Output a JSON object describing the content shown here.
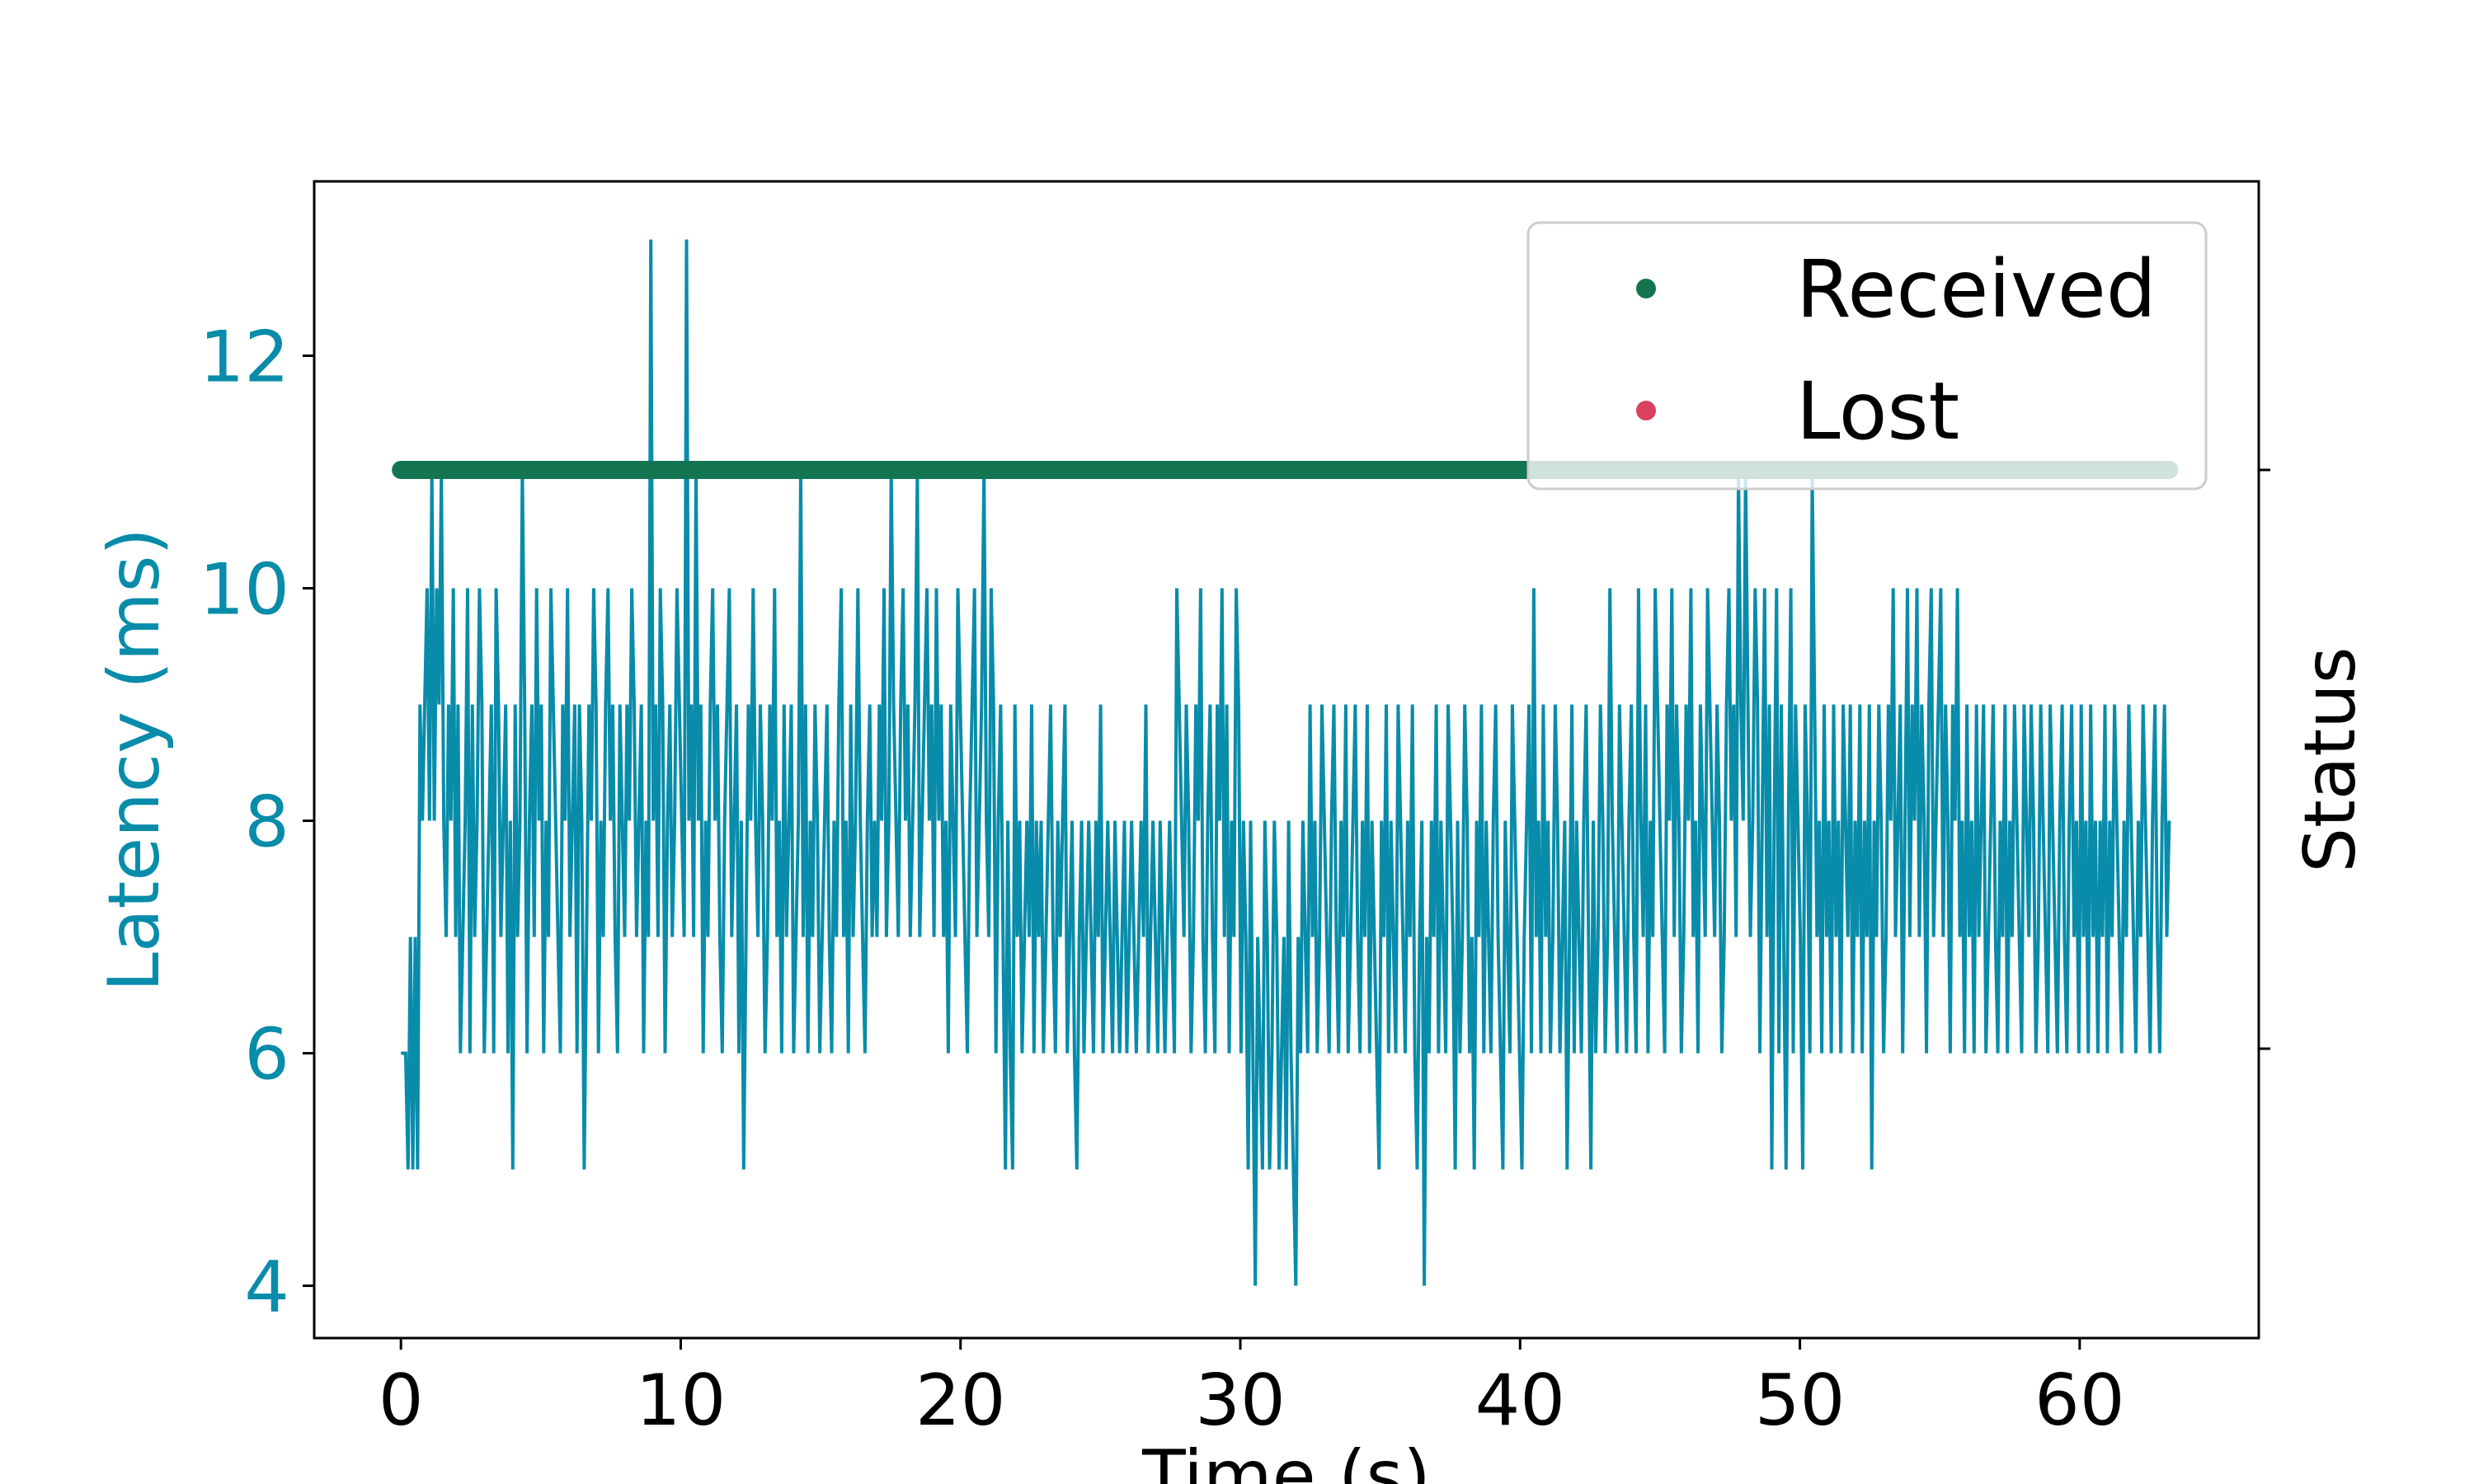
{
  "chart_data": {
    "type": "line",
    "xlabel": "Time (s)",
    "ylabel": "Latency (ms)",
    "ylabel_right": "Status",
    "xlim": [
      -3.1,
      66.4
    ],
    "ylim": [
      3.55,
      13.5
    ],
    "xticks": [
      0,
      10,
      20,
      30,
      40,
      50,
      60
    ],
    "yticks": [
      4,
      6,
      8,
      10,
      12
    ],
    "grid": false,
    "legend_position": "top-right",
    "legend": [
      {
        "label": "Received",
        "color": "#137550"
      },
      {
        "label": "Lost",
        "color": "#d9415f"
      }
    ],
    "series": [
      {
        "name": "Latency",
        "color": "#088caa",
        "x_start": 0,
        "x_end": 63.2,
        "values": [
          6,
          6,
          6,
          5,
          7,
          5,
          7,
          5,
          9,
          8,
          9,
          10,
          8,
          11,
          8,
          10,
          9,
          11,
          8,
          7,
          9,
          8,
          10,
          7,
          9,
          6,
          7,
          8,
          10,
          6,
          9,
          7,
          8,
          10,
          9,
          6,
          7,
          8,
          9,
          6,
          10,
          9,
          7,
          8,
          9,
          6,
          8,
          5,
          9,
          7,
          8,
          11,
          9,
          6,
          8,
          9,
          7,
          10,
          8,
          9,
          6,
          8,
          7,
          10,
          9,
          8,
          7,
          6,
          9,
          8,
          10,
          7,
          8,
          9,
          6,
          9,
          8,
          5,
          7,
          9,
          8,
          10,
          9,
          6,
          8,
          7,
          9,
          10,
          8,
          9,
          7,
          6,
          9,
          8,
          7,
          9,
          8,
          10,
          9,
          7,
          8,
          9,
          6,
          8,
          7,
          13,
          8,
          9,
          7,
          10,
          9,
          6,
          8,
          9,
          7,
          8,
          10,
          9,
          8,
          7,
          13,
          8,
          9,
          7,
          11,
          8,
          9,
          6,
          8,
          7,
          9,
          10,
          8,
          9,
          7,
          6,
          8,
          9,
          10,
          7,
          8,
          9,
          6,
          8,
          5,
          7,
          9,
          8,
          10,
          8,
          7,
          9,
          8,
          6,
          7,
          9,
          8,
          10,
          7,
          8,
          6,
          9,
          7,
          8,
          9,
          6,
          7,
          8,
          11,
          7,
          9,
          6,
          8,
          7,
          9,
          8,
          6,
          7,
          8,
          9,
          7,
          6,
          8,
          7,
          9,
          10,
          7,
          8,
          6,
          9,
          7,
          8,
          10,
          8,
          7,
          6,
          8,
          9,
          7,
          8,
          7,
          9,
          8,
          10,
          7,
          8,
          11,
          9,
          8,
          7,
          9,
          10,
          8,
          9,
          7,
          8,
          9,
          11,
          7,
          8,
          9,
          10,
          8,
          9,
          7,
          10,
          8,
          9,
          7,
          8,
          6,
          9,
          8,
          7,
          10,
          9,
          8,
          7,
          6,
          8,
          9,
          10,
          7,
          8,
          9,
          11,
          8,
          7,
          10,
          9,
          6,
          8,
          9,
          7,
          5,
          8,
          6,
          5,
          9,
          7,
          8,
          6,
          7,
          8,
          7,
          9,
          6,
          8,
          7,
          8,
          6,
          7,
          8,
          9,
          7,
          6,
          8,
          7,
          8,
          9,
          6,
          7,
          8,
          6,
          5,
          7,
          8,
          6,
          7,
          8,
          7,
          6,
          8,
          7,
          9,
          6,
          7,
          8,
          7,
          6,
          8,
          7,
          6,
          7,
          8,
          6,
          7,
          8,
          7,
          6,
          7,
          8,
          7,
          9,
          6,
          7,
          8,
          7,
          6,
          8,
          7,
          6,
          7,
          8,
          7,
          6,
          10,
          9,
          8,
          7,
          9,
          8,
          6,
          7,
          9,
          8,
          10,
          7,
          6,
          8,
          9,
          7,
          6,
          9,
          8,
          10,
          7,
          9,
          6,
          8,
          7,
          10,
          9,
          6,
          8,
          7,
          5,
          8,
          6,
          4,
          7,
          6,
          5,
          8,
          7,
          5,
          6,
          8,
          7,
          5,
          6,
          7,
          5,
          8,
          6,
          5,
          4,
          7,
          6,
          8,
          7,
          6,
          9,
          7,
          8,
          6,
          7,
          9,
          8,
          7,
          6,
          8,
          9,
          7,
          6,
          8,
          7,
          9,
          6,
          7,
          8,
          9,
          7,
          6,
          8,
          7,
          9,
          6,
          8,
          7,
          6,
          5,
          8,
          7,
          9,
          6,
          8,
          7,
          6,
          9,
          8,
          7,
          6,
          8,
          7,
          9,
          6,
          5,
          7,
          8,
          4,
          7,
          6,
          8,
          7,
          9,
          6,
          8,
          7,
          6,
          9,
          8,
          7,
          5,
          8,
          6,
          7,
          9,
          8,
          6,
          7,
          5,
          8,
          7,
          9,
          6,
          8,
          7,
          6,
          8,
          9,
          7,
          6,
          5,
          8,
          7,
          6,
          9,
          8,
          7,
          6,
          5,
          7,
          8,
          9,
          6,
          10,
          7,
          8,
          6,
          9,
          7,
          8,
          6,
          7,
          9,
          8,
          6,
          7,
          8,
          5,
          7,
          9,
          6,
          8,
          7,
          6,
          8,
          9,
          7,
          5,
          8,
          6,
          7,
          9,
          8,
          6,
          7,
          10,
          8,
          7,
          6,
          9,
          8,
          7,
          6,
          8,
          9,
          7,
          6,
          10,
          8,
          7,
          9,
          6,
          8,
          7,
          10,
          9,
          8,
          7,
          6,
          9,
          8,
          10,
          7,
          9,
          8,
          6,
          7,
          9,
          8,
          10,
          7,
          8,
          6,
          9,
          8,
          7,
          10,
          9,
          8,
          7,
          9,
          8,
          6,
          7,
          9,
          10,
          8,
          9,
          7,
          11,
          9,
          8,
          11,
          9,
          7,
          8,
          10,
          9,
          6,
          8,
          10,
          7,
          9,
          5,
          8,
          10,
          6,
          9,
          7,
          5,
          8,
          10,
          6,
          9,
          8,
          7,
          5,
          9,
          8,
          6,
          11,
          9,
          7,
          8,
          6,
          9,
          7,
          8,
          6,
          9,
          7,
          8,
          6,
          9,
          8,
          7,
          9,
          6,
          8,
          7,
          9,
          6,
          8,
          7,
          9,
          5,
          8,
          7,
          9,
          8,
          6,
          7,
          9,
          8,
          10,
          7,
          8,
          9,
          6,
          8,
          10,
          7,
          9,
          8,
          10,
          7,
          9,
          8,
          6,
          9,
          10,
          7,
          8,
          9,
          10,
          7,
          9,
          8,
          6,
          9,
          8,
          10,
          7,
          8,
          6,
          9,
          7,
          8,
          6,
          9,
          7,
          8,
          9,
          6,
          7,
          8,
          9,
          7,
          6,
          8,
          7,
          9,
          6,
          8,
          7,
          9,
          8,
          7,
          6,
          9,
          8,
          7,
          9,
          8,
          6,
          7,
          9,
          8,
          7,
          6,
          9,
          8,
          7,
          6,
          8,
          9,
          7,
          6,
          8,
          9,
          7,
          8,
          6,
          9,
          7,
          8,
          6,
          9,
          7,
          8,
          6,
          8,
          7,
          9,
          6,
          8,
          7,
          9,
          8,
          7,
          6,
          8,
          7,
          9,
          8,
          7,
          6,
          8,
          7,
          9,
          8,
          7,
          6,
          8,
          9,
          7,
          6,
          8,
          9,
          7,
          8
        ]
      },
      {
        "name": "Received",
        "color": "#137550",
        "status_level": "upper",
        "x_start": 0,
        "x_end": 63.2
      }
    ]
  }
}
